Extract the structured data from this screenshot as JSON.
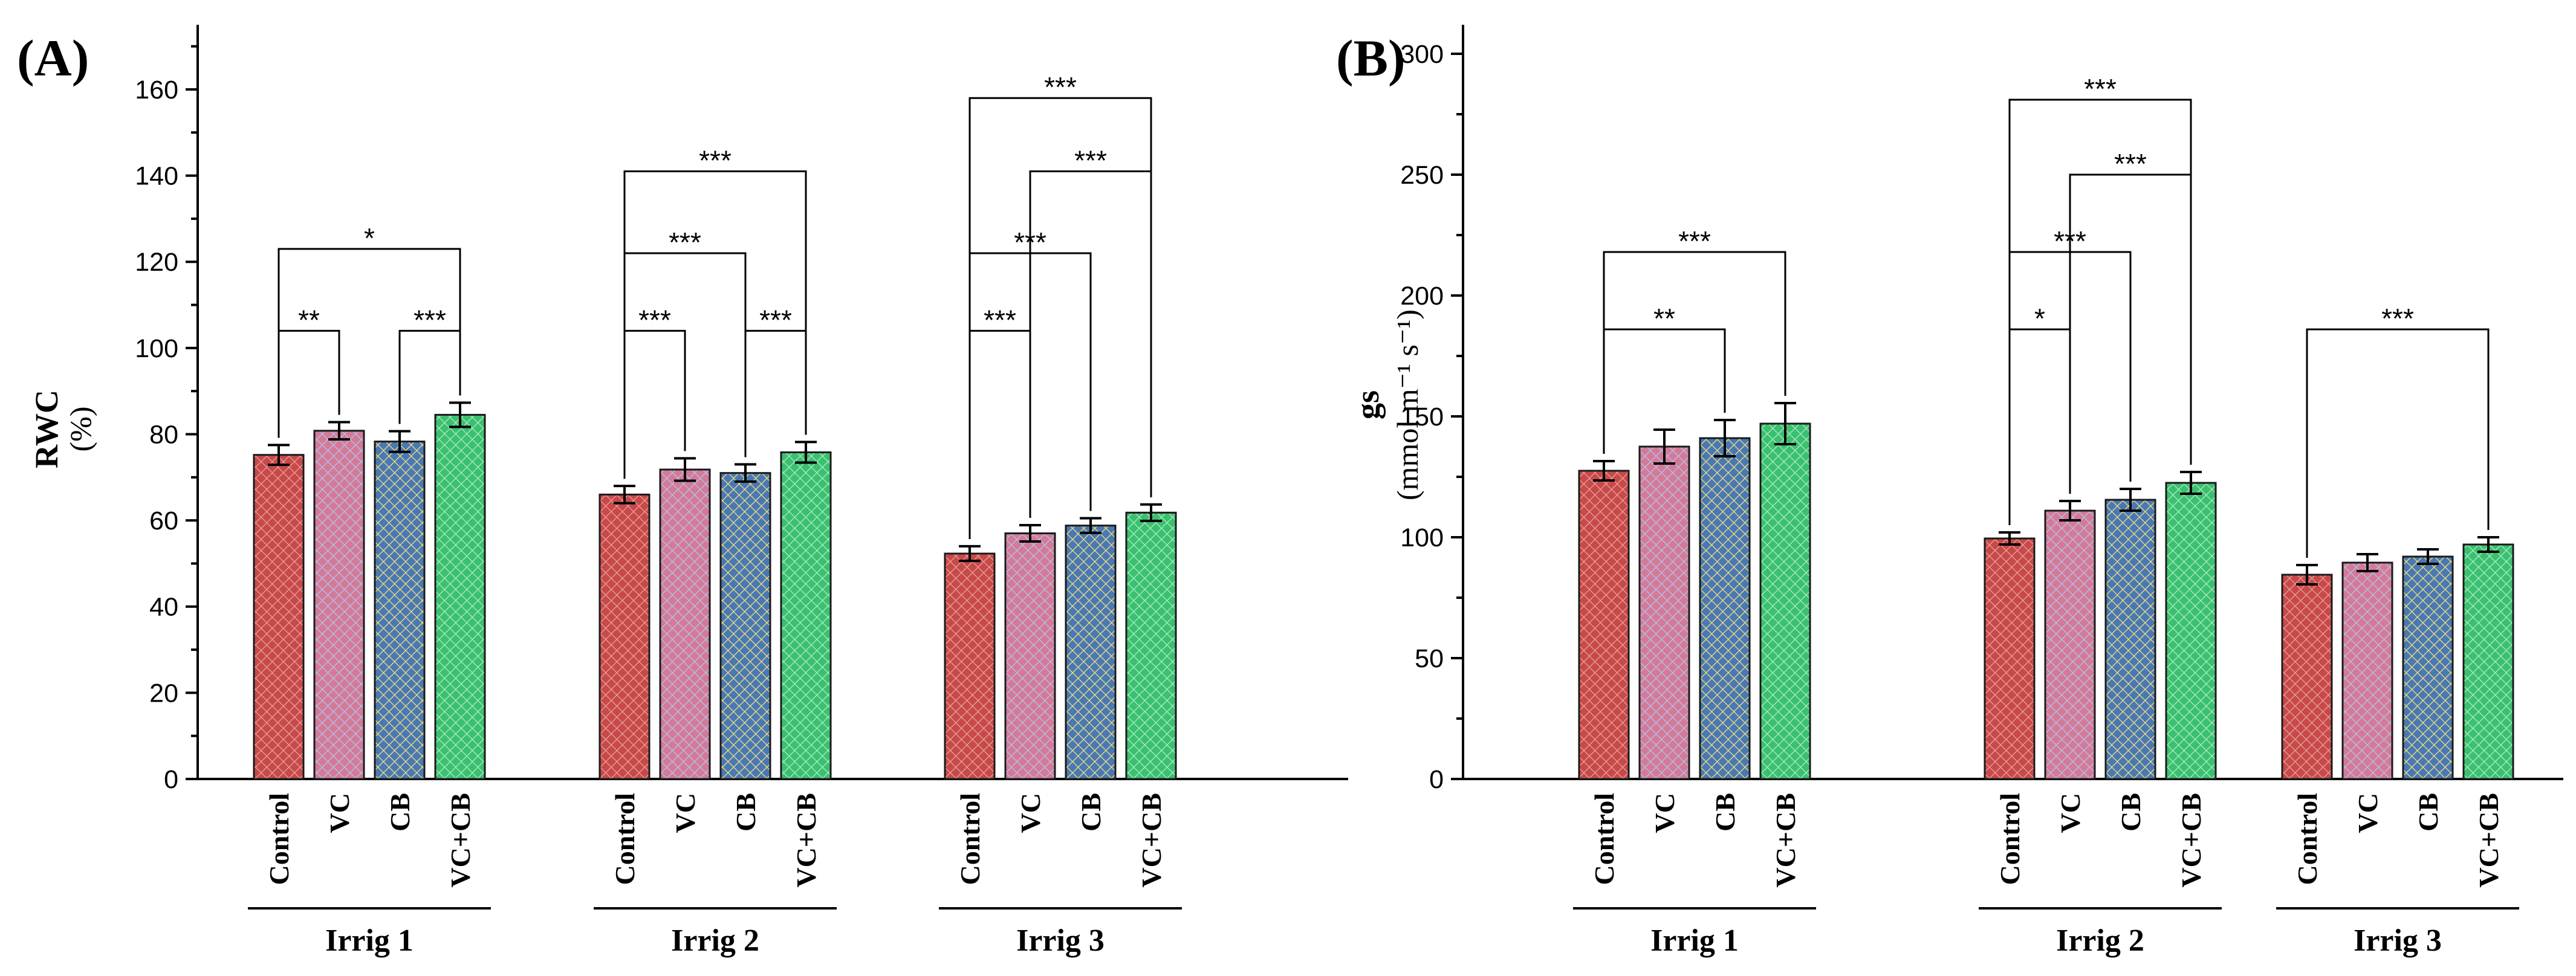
{
  "colors": {
    "Control": "#c8494a",
    "VC": "#d47a98",
    "CB": "#4a78b4",
    "VC+CB": "#3cc070"
  },
  "hatch_colors": {
    "Control": "#e9a29a",
    "VC": "#b3c3e8",
    "CB": "#f0e37a",
    "VC+CB": "#a9eec4"
  },
  "chart_data": [
    {
      "type": "bar",
      "panel_label": "(A)",
      "ylabel": "RWC",
      "yunit": "(%)",
      "ylim": [
        0,
        175
      ],
      "yticks": [
        0,
        20,
        40,
        60,
        80,
        100,
        120,
        140,
        160
      ],
      "treatments": [
        "Control",
        "VC",
        "CB",
        "VC+CB"
      ],
      "groups": [
        {
          "name": "Irrig 1",
          "values": [
            75.2,
            80.8,
            78.3,
            84.5
          ],
          "errors": [
            2.3,
            2.0,
            2.4,
            2.8
          ],
          "comparisons": [
            {
              "from": 0,
              "to": 1,
              "label": "**",
              "y": 104
            },
            {
              "from": 2,
              "to": 3,
              "label": "***",
              "y": 104
            },
            {
              "from": 0,
              "to": 3,
              "label": "*",
              "y": 123
            }
          ]
        },
        {
          "name": "Irrig 2",
          "values": [
            66.0,
            71.8,
            71.0,
            75.8
          ],
          "errors": [
            2.0,
            2.6,
            2.0,
            2.4
          ],
          "comparisons": [
            {
              "from": 0,
              "to": 1,
              "label": "***",
              "y": 104
            },
            {
              "from": 2,
              "to": 3,
              "label": "***",
              "y": 104
            },
            {
              "from": 0,
              "to": 2,
              "label": "***",
              "y": 122
            },
            {
              "from": 0,
              "to": 3,
              "label": "***",
              "y": 141
            }
          ]
        },
        {
          "name": "Irrig 3",
          "values": [
            52.3,
            57.0,
            58.8,
            61.8
          ],
          "errors": [
            1.7,
            1.9,
            1.7,
            1.9
          ],
          "comparisons": [
            {
              "from": 0,
              "to": 1,
              "label": "***",
              "y": 104
            },
            {
              "from": 0,
              "to": 2,
              "label": "***",
              "y": 122
            },
            {
              "from": 1,
              "to": 3,
              "label": "***",
              "y": 141
            },
            {
              "from": 0,
              "to": 3,
              "label": "***",
              "y": 158
            }
          ]
        }
      ]
    },
    {
      "type": "bar",
      "panel_label": "(B)",
      "ylabel": "gs",
      "yunit": "(mmol m⁻¹ s⁻¹)",
      "ylim": [
        0,
        312
      ],
      "yticks": [
        0,
        50,
        100,
        150,
        200,
        250,
        300
      ],
      "treatments": [
        "Control",
        "VC",
        "CB",
        "VC+CB"
      ],
      "groups": [
        {
          "name": "Irrig 1",
          "values": [
            127.5,
            137.5,
            141.0,
            147.0
          ],
          "errors": [
            4.0,
            7.0,
            7.5,
            8.5
          ],
          "comparisons": [
            {
              "from": 0,
              "to": 2,
              "label": "**",
              "y": 186
            },
            {
              "from": 0,
              "to": 3,
              "label": "***",
              "y": 218
            }
          ]
        },
        {
          "name": "Irrig 2",
          "values": [
            99.5,
            111.0,
            115.5,
            122.5
          ],
          "errors": [
            2.5,
            4.0,
            4.5,
            4.5
          ],
          "comparisons": [
            {
              "from": 0,
              "to": 1,
              "label": "*",
              "y": 186
            },
            {
              "from": 0,
              "to": 2,
              "label": "***",
              "y": 218
            },
            {
              "from": 1,
              "to": 3,
              "label": "***",
              "y": 250
            },
            {
              "from": 0,
              "to": 3,
              "label": "***",
              "y": 281
            }
          ]
        },
        {
          "name": "Irrig 3",
          "values": [
            84.5,
            89.5,
            92.0,
            97.0
          ],
          "errors": [
            4.0,
            3.5,
            3.0,
            3.0
          ],
          "comparisons": [
            {
              "from": 0,
              "to": 3,
              "label": "***",
              "y": 186
            }
          ]
        }
      ]
    }
  ]
}
